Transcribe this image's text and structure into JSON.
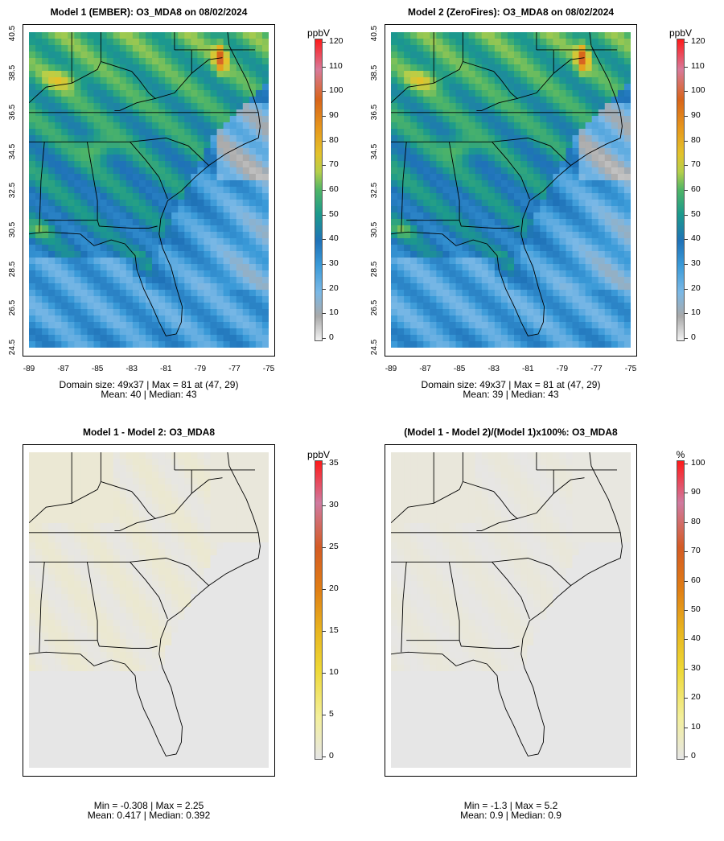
{
  "panels": [
    {
      "title": "Model 1 (EMBER): O3_MDA8 on 08/02/2024",
      "kind": "conc",
      "stats_line1": "Domain size: 49x37 | Max = 81 at (47, 29)",
      "stats_line2": "Mean: 40 |  Median: 43",
      "colorbar": {
        "unit": "ppbV",
        "labels": [
          "0",
          "10",
          "20",
          "30",
          "40",
          "50",
          "60",
          "70",
          "80",
          "90",
          "100",
          "110",
          "120"
        ],
        "max": 120
      },
      "show_axes": true,
      "y_ticks": [
        "24.5",
        "26.5",
        "28.5",
        "30.5",
        "32.5",
        "34.5",
        "36.5",
        "38.5",
        "40.5"
      ],
      "x_ticks": [
        "-89",
        "-87",
        "-85",
        "-83",
        "-81",
        "-79",
        "-77",
        "-75"
      ]
    },
    {
      "title": "Model 2 (ZeroFires): O3_MDA8 on 08/02/2024",
      "kind": "conc",
      "stats_line1": "Domain size: 49x37 | Max = 81 at (47, 29)",
      "stats_line2": "Mean: 39 |  Median: 43",
      "colorbar": {
        "unit": "ppbV",
        "labels": [
          "0",
          "10",
          "20",
          "30",
          "40",
          "50",
          "60",
          "70",
          "80",
          "90",
          "100",
          "110",
          "120"
        ],
        "max": 120
      },
      "show_axes": true,
      "y_ticks": [
        "24.5",
        "26.5",
        "28.5",
        "30.5",
        "32.5",
        "34.5",
        "36.5",
        "38.5",
        "40.5"
      ],
      "x_ticks": [
        "-89",
        "-87",
        "-85",
        "-83",
        "-81",
        "-79",
        "-77",
        "-75"
      ]
    },
    {
      "title": "Model 1 - Model 2: O3_MDA8",
      "kind": "diff",
      "stats_line1": "Min = -0.308 | Max = 2.25",
      "stats_line2": "Mean: 0.417 |  Median: 0.392",
      "colorbar": {
        "unit": "ppbV",
        "labels": [
          "0",
          "5",
          "10",
          "15",
          "20",
          "25",
          "30",
          "35"
        ],
        "max": 35
      },
      "show_axes": false,
      "y_ticks": [],
      "x_ticks": []
    },
    {
      "title": "(Model 1 - Model 2)/(Model 1)x100%: O3_MDA8",
      "kind": "pct",
      "stats_line1": "Min = -1.3 | Max = 5.2",
      "stats_line2": "Mean: 0.9 |  Median: 0.9",
      "colorbar": {
        "unit": "%",
        "labels": [
          "0",
          "10",
          "20",
          "30",
          "40",
          "50",
          "60",
          "70",
          "80",
          "90",
          "100"
        ],
        "max": 100
      },
      "show_axes": false,
      "y_ticks": [],
      "x_ticks": []
    }
  ],
  "colors": {
    "ocean_far": "#56b0e6",
    "low": "#2f8fd0",
    "mid": "#1f7fb8",
    "teal": "#1aa08a",
    "green": "#5cbc5a",
    "yellow": "#d9b51e",
    "orange": "#e59416",
    "diff_bg": "#e6e6e6",
    "diff_tint": "#efeccb"
  }
}
